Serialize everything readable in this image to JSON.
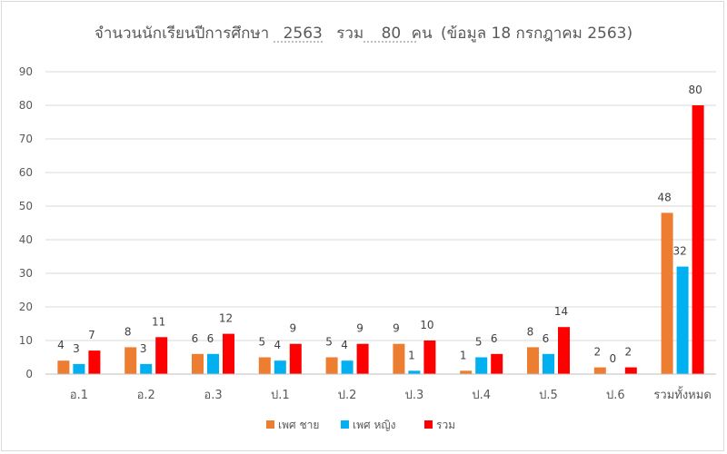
{
  "chart_data": {
    "type": "bar",
    "title_parts": {
      "prefix": "จำนวนนักเรียนปีการศึกษา",
      "year": "2563",
      "total_label": "รวม",
      "total": "80",
      "unit": "คน",
      "date_note": "(ข้อมูล 18 กรกฎาคม 2563)"
    },
    "categories": [
      "อ.1",
      "อ.2",
      "อ.3",
      "ป.1",
      "ป.2",
      "ป.3",
      "ป.4",
      "ป.5",
      "ป.6",
      "รวมทั้งหมด"
    ],
    "series": [
      {
        "name": "เพศ  ชาย",
        "color": "#ed7d31",
        "values": [
          4,
          8,
          6,
          5,
          5,
          9,
          1,
          8,
          2,
          48
        ]
      },
      {
        "name": "เพศ  หญิง",
        "color": "#00b0f0",
        "values": [
          3,
          3,
          6,
          4,
          4,
          1,
          5,
          6,
          0,
          32
        ]
      },
      {
        "name": "รวม",
        "color": "#ff0000",
        "values": [
          7,
          11,
          12,
          9,
          9,
          10,
          6,
          14,
          2,
          80
        ]
      }
    ],
    "ylim": [
      0,
      90
    ],
    "yticks": [
      0,
      10,
      20,
      30,
      40,
      50,
      60,
      70,
      80,
      90
    ],
    "grid": true,
    "legend_position": "bottom"
  }
}
